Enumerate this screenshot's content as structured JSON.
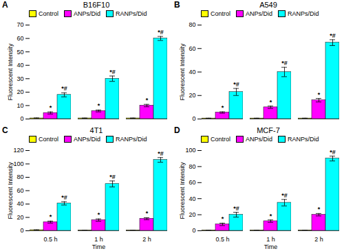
{
  "chart_data": [
    {
      "type": "bar",
      "title": "B16F10",
      "annotations": [
        {
          "text": "A"
        }
      ],
      "categories": [
        null,
        null,
        null
      ],
      "ylabel": "Fluorescent Intensity",
      "ylim": [
        0,
        70
      ],
      "yticks": [
        0,
        10,
        20,
        30,
        40,
        50,
        60,
        70
      ],
      "grid": false,
      "legend": "upper left",
      "series": [
        {
          "name": "Control",
          "color": "#FFFF00",
          "values": [
            0.5,
            0.5,
            0.5
          ],
          "errors": [
            0.3,
            0.2,
            0.2
          ]
        },
        {
          "name": "ANPs/Did",
          "color": "#FF00FF",
          "values": [
            4.5,
            6.0,
            10.0
          ],
          "errors": [
            0.8,
            0.7,
            0.9
          ],
          "annotations": [
            "*",
            "*",
            "*"
          ]
        },
        {
          "name": "RANPs/Did",
          "color": "#00FFFF",
          "values": [
            18.0,
            30.0,
            60.0
          ],
          "errors": [
            1.5,
            2.0,
            1.5
          ],
          "annotations": [
            "*#",
            "*#",
            "*#"
          ]
        }
      ]
    },
    {
      "type": "bar",
      "title": "A549",
      "annotations": [
        {
          "text": "B"
        }
      ],
      "categories": [
        null,
        null,
        null
      ],
      "ylabel": "Fluorescent Intensity",
      "ylim": [
        0,
        80
      ],
      "yticks": [
        0,
        20,
        40,
        60,
        80
      ],
      "grid": false,
      "legend": "upper left",
      "series": [
        {
          "name": "Control",
          "color": "#FFFF00",
          "values": [
            0.5,
            0.5,
            0.5
          ],
          "errors": [
            0.2,
            0.2,
            0.2
          ]
        },
        {
          "name": "ANPs/Did",
          "color": "#FF00FF",
          "values": [
            5.5,
            10.0,
            16.0
          ],
          "errors": [
            0.6,
            1.0,
            1.5
          ],
          "annotations": [
            "*",
            "*",
            "*"
          ]
        },
        {
          "name": "RANPs/Did",
          "color": "#00FFFF",
          "values": [
            23.0,
            40.0,
            65.0
          ],
          "errors": [
            3.0,
            4.0,
            2.5
          ],
          "annotations": [
            "*#",
            "*#",
            "*#"
          ]
        }
      ]
    },
    {
      "type": "bar",
      "title": "4T1",
      "annotations": [
        {
          "text": "C"
        }
      ],
      "categories": [
        "0.5 h",
        "1 h",
        "2 h"
      ],
      "xlabel": "Time",
      "ylabel": "Fluorescent Intensity",
      "ylim": [
        0,
        120
      ],
      "yticks": [
        0,
        20,
        40,
        60,
        80,
        100,
        120
      ],
      "grid": false,
      "legend": "upper left",
      "series": [
        {
          "name": "Control",
          "color": "#FFFF00",
          "values": [
            1.0,
            0.5,
            0.5
          ],
          "errors": [
            0.4,
            0.2,
            0.2
          ]
        },
        {
          "name": "ANPs/Did",
          "color": "#FF00FF",
          "values": [
            13.0,
            16.0,
            18.0
          ],
          "errors": [
            1.5,
            1.8,
            1.5
          ],
          "annotations": [
            "*",
            "*",
            "*"
          ]
        },
        {
          "name": "RANPs/Did",
          "color": "#00FFFF",
          "values": [
            41.0,
            70.0,
            106.0
          ],
          "errors": [
            2.5,
            4.5,
            3.5
          ],
          "annotations": [
            "*#",
            "*#",
            "*#"
          ]
        }
      ]
    },
    {
      "type": "bar",
      "title": "MCF-7",
      "annotations": [
        {
          "text": "D"
        }
      ],
      "categories": [
        "0.5 h",
        "1 h",
        "2 h"
      ],
      "xlabel": "Time",
      "ylabel": "Fluorescent Intensity",
      "ylim": [
        0,
        100
      ],
      "yticks": [
        0,
        20,
        40,
        60,
        80,
        100
      ],
      "grid": false,
      "legend": "upper left",
      "series": [
        {
          "name": "Control",
          "color": "#FFFF00",
          "values": [
            0.5,
            0.5,
            0.5
          ],
          "errors": [
            0.3,
            0.2,
            0.2
          ]
        },
        {
          "name": "ANPs/Did",
          "color": "#FF00FF",
          "values": [
            8.0,
            12.0,
            20.0
          ],
          "errors": [
            1.5,
            1.5,
            1.5
          ],
          "annotations": [
            "*",
            "*",
            "*"
          ]
        },
        {
          "name": "RANPs/Did",
          "color": "#00FFFF",
          "values": [
            20.0,
            35.0,
            90.0
          ],
          "errors": [
            3.0,
            4.0,
            3.0
          ],
          "annotations": [
            "*#",
            "*#",
            "*#"
          ]
        }
      ]
    }
  ]
}
